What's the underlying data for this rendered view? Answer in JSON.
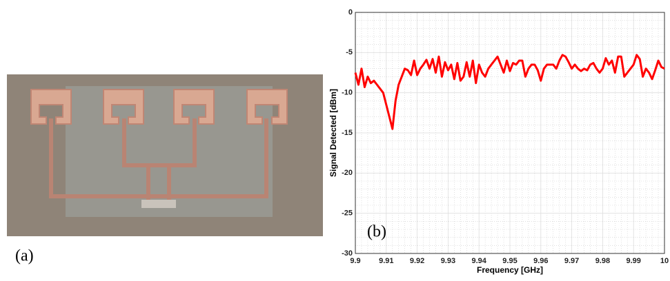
{
  "photo": {
    "label": "(a)"
  },
  "chart_data": {
    "type": "line",
    "annotation": "(b)",
    "xlabel": "Frequency [GHz]",
    "ylabel": "Signal Detected [dBm]",
    "x": [
      9.9,
      9.901,
      9.902,
      9.903,
      9.904,
      9.905,
      9.906,
      9.907,
      9.908,
      9.909,
      9.91,
      9.911,
      9.912,
      9.913,
      9.914,
      9.915,
      9.916,
      9.917,
      9.918,
      9.919,
      9.92,
      9.921,
      9.922,
      9.923,
      9.924,
      9.925,
      9.926,
      9.927,
      9.928,
      9.929,
      9.93,
      9.931,
      9.932,
      9.933,
      9.934,
      9.935,
      9.936,
      9.937,
      9.938,
      9.939,
      9.94,
      9.941,
      9.942,
      9.943,
      9.944,
      9.945,
      9.946,
      9.947,
      9.948,
      9.949,
      9.95,
      9.951,
      9.952,
      9.953,
      9.954,
      9.955,
      9.956,
      9.957,
      9.958,
      9.959,
      9.96,
      9.961,
      9.962,
      9.963,
      9.964,
      9.965,
      9.966,
      9.967,
      9.968,
      9.969,
      9.97,
      9.971,
      9.972,
      9.973,
      9.974,
      9.975,
      9.976,
      9.977,
      9.978,
      9.979,
      9.98,
      9.981,
      9.982,
      9.983,
      9.984,
      9.985,
      9.986,
      9.987,
      9.988,
      9.989,
      9.99,
      9.991,
      9.992,
      9.993,
      9.994,
      9.995,
      9.996,
      9.997,
      9.998,
      9.999,
      10
    ],
    "values": [
      -7.5,
      -9,
      -7,
      -9.3,
      -8,
      -8.8,
      -8.5,
      -9,
      -9.5,
      -10,
      -11.5,
      -13,
      -14.5,
      -11,
      -9,
      -8,
      -7,
      -7.2,
      -7.8,
      -6,
      -7.8,
      -7,
      -6.5,
      -5.9,
      -7,
      -5.8,
      -7.5,
      -5.5,
      -8,
      -6.2,
      -7.2,
      -6.5,
      -8.3,
      -6.3,
      -8.5,
      -8,
      -6.2,
      -8,
      -6,
      -8.8,
      -6.5,
      -7.5,
      -8,
      -7,
      -6.5,
      -6,
      -5.5,
      -6.5,
      -7.5,
      -6,
      -7.3,
      -6.3,
      -6.5,
      -6,
      -6,
      -8,
      -7,
      -6.5,
      -6.5,
      -7.2,
      -8.5,
      -7,
      -6.5,
      -6.5,
      -6.5,
      -7,
      -6,
      -5.3,
      -5.5,
      -6.2,
      -7,
      -6.5,
      -7,
      -7.3,
      -7,
      -7.2,
      -6.5,
      -6.3,
      -7,
      -7.5,
      -7,
      -5.7,
      -6.5,
      -6,
      -7.5,
      -5.5,
      -5.5,
      -8,
      -7.5,
      -7,
      -6.5,
      -5.3,
      -5.8,
      -8,
      -7,
      -7.5,
      -8.3,
      -7.2,
      -6,
      -6.8,
      -7
    ],
    "color": "#ff0000",
    "xlim": [
      9.9,
      10
    ],
    "xticks": [
      9.9,
      9.91,
      9.92,
      9.93,
      9.94,
      9.95,
      9.96,
      9.97,
      9.98,
      9.99,
      10
    ],
    "ylim": [
      -30,
      0
    ],
    "yticks": [
      -30,
      -25,
      -20,
      -15,
      -10,
      -5,
      0
    ],
    "grid": true
  }
}
